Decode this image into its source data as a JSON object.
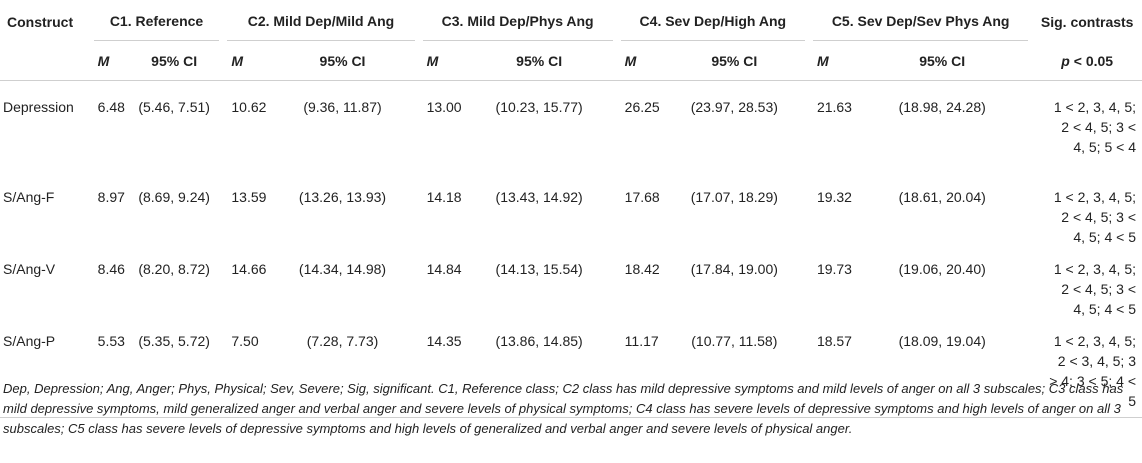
{
  "table": {
    "headers": {
      "construct": "Construct",
      "classes": [
        "C1. Reference",
        "C2. Mild Dep/Mild Ang",
        "C3. Mild Dep/Phys Ang",
        "C4. Sev Dep/High Ang",
        "C5. Sev Dep/Sev Phys Ang"
      ],
      "sig": "Sig. contrasts",
      "m": "M",
      "ci": "95% CI",
      "sig_p": "p",
      "sig_rest": " < 0.05"
    },
    "rows": [
      {
        "construct": "Depression",
        "cells": [
          {
            "m": "6.48",
            "ci": "(5.46, 7.51)"
          },
          {
            "m": "10.62",
            "ci": "(9.36, 11.87)"
          },
          {
            "m": "13.00",
            "ci": "(10.23, 15.77)"
          },
          {
            "m": "26.25",
            "ci": "(23.97, 28.53)"
          },
          {
            "m": "21.63",
            "ci": "(18.98, 24.28)"
          }
        ],
        "sig": "1 < 2, 3, 4, 5; 2 < 4, 5; 3 < 4, 5; 5 < 4"
      },
      {
        "construct": "S/Ang-F",
        "cells": [
          {
            "m": "8.97",
            "ci": "(8.69, 9.24)"
          },
          {
            "m": "13.59",
            "ci": "(13.26, 13.93)"
          },
          {
            "m": "14.18",
            "ci": "(13.43, 14.92)"
          },
          {
            "m": "17.68",
            "ci": "(17.07, 18.29)"
          },
          {
            "m": "19.32",
            "ci": "(18.61, 20.04)"
          }
        ],
        "sig": "1 < 2, 3, 4, 5; 2 < 4, 5; 3 < 4, 5; 4 < 5"
      },
      {
        "construct": "S/Ang-V",
        "cells": [
          {
            "m": "8.46",
            "ci": "(8.20, 8.72)"
          },
          {
            "m": "14.66",
            "ci": "(14.34, 14.98)"
          },
          {
            "m": "14.84",
            "ci": "(14.13, 15.54)"
          },
          {
            "m": "18.42",
            "ci": "(17.84, 19.00)"
          },
          {
            "m": "19.73",
            "ci": "(19.06, 20.40)"
          }
        ],
        "sig": "1 < 2, 3, 4, 5; 2 < 4, 5; 3 < 4, 5; 4 < 5"
      },
      {
        "construct": "S/Ang-P",
        "cells": [
          {
            "m": "5.53",
            "ci": "(5.35, 5.72)"
          },
          {
            "m": "7.50",
            "ci": "(7.28, 7.73)"
          },
          {
            "m": "14.35",
            "ci": "(13.86, 14.85)"
          },
          {
            "m": "11.17",
            "ci": "(10.77, 11.58)"
          },
          {
            "m": "18.57",
            "ci": "(18.09, 19.04)"
          }
        ],
        "sig": "1 < 2, 3, 4, 5; 2 < 3, 4, 5; 3 > 4; 3 < 5; 4 < 5"
      }
    ]
  },
  "note": "Dep, Depression; Ang, Anger; Phys, Physical; Sev, Severe; Sig, significant. C1, Reference class; C2 class has mild depressive symptoms and mild levels of anger on all 3 subscales; C3 class has mild depressive symptoms, mild generalized anger and verbal anger and severe levels of physical symptoms; C4 class has severe levels of depressive symptoms and high levels of anger on all 3 subscales; C5 class has severe levels of depressive symptoms and high levels of generalized and verbal anger and severe levels of physical anger."
}
